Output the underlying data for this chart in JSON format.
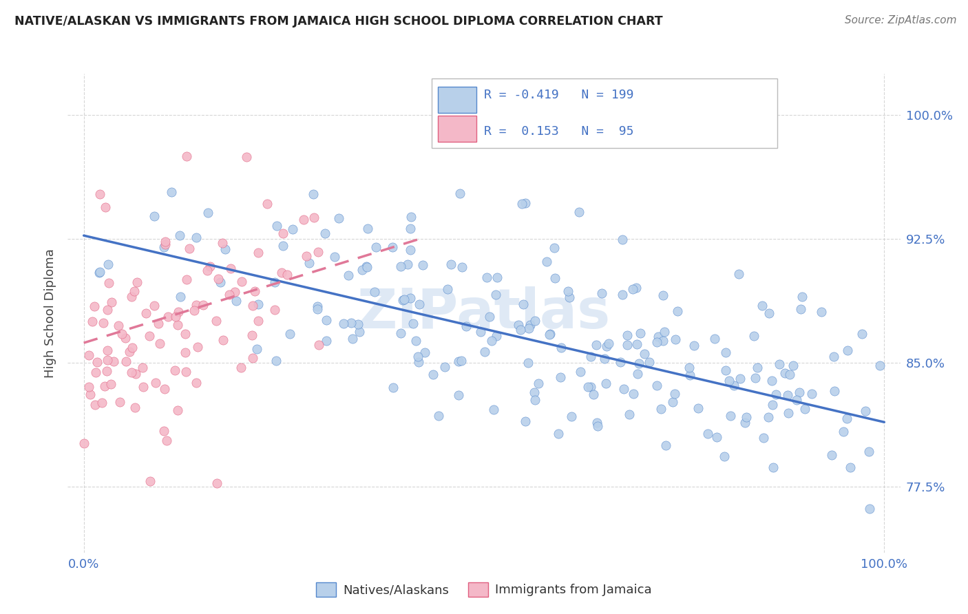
{
  "title": "NATIVE/ALASKAN VS IMMIGRANTS FROM JAMAICA HIGH SCHOOL DIPLOMA CORRELATION CHART",
  "source": "Source: ZipAtlas.com",
  "ylabel": "High School Diploma",
  "y_ticks": [
    0.775,
    0.85,
    0.925,
    1.0
  ],
  "y_tick_labels": [
    "77.5%",
    "85.0%",
    "92.5%",
    "100.0%"
  ],
  "x_ticks": [
    0.0,
    1.0
  ],
  "x_tick_labels": [
    "0.0%",
    "100.0%"
  ],
  "y_min": 0.735,
  "y_max": 1.025,
  "x_min": -0.02,
  "x_max": 1.02,
  "legend_label1": "Natives/Alaskans",
  "legend_label2": "Immigrants from Jamaica",
  "r1": "-0.419",
  "n1": "199",
  "r2": "0.153",
  "n2": "95",
  "color_blue_fill": "#b8d0ea",
  "color_blue_edge": "#5588cc",
  "color_pink_fill": "#f4b8c8",
  "color_pink_edge": "#e06080",
  "color_line_blue": "#4472c4",
  "color_line_pink": "#e07898",
  "watermark": "ZIPatlas",
  "blue_line_start_x": 0.0,
  "blue_line_start_y": 0.927,
  "blue_line_end_x": 1.0,
  "blue_line_end_y": 0.814,
  "pink_line_start_x": 0.0,
  "pink_line_start_y": 0.862,
  "pink_line_end_x": 0.42,
  "pink_line_end_y": 0.925
}
